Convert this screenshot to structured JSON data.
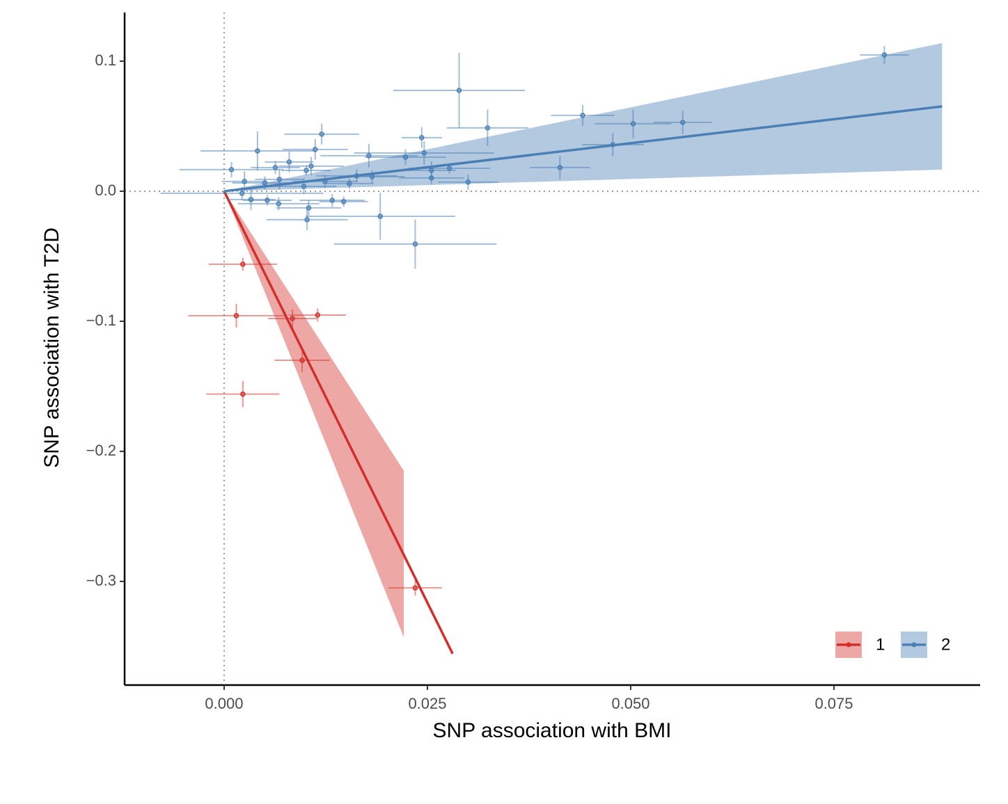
{
  "chart_data": {
    "type": "scatter",
    "x_label": "SNP association with BMI",
    "y_label": "SNP association with T2D",
    "xlim": [
      -0.01224,
      0.09298
    ],
    "ylim": [
      -0.3797,
      0.1374
    ],
    "xticks": [
      {
        "value": 0,
        "label": "0.000"
      },
      {
        "value": 0.025,
        "label": "0.025"
      },
      {
        "value": 0.05,
        "label": "0.050"
      },
      {
        "value": 0.075,
        "label": "0.075"
      }
    ],
    "yticks": [
      {
        "value": -0.3,
        "label": "−0.3"
      },
      {
        "value": -0.2,
        "label": "−0.2"
      },
      {
        "value": -0.1,
        "label": "−0.1"
      },
      {
        "value": 0,
        "label": "0.0"
      },
      0.1
    ],
    "hline": 0,
    "vline": 0,
    "legend_position": "bottom-right",
    "series": [
      {
        "name": "1",
        "color": "#d32f2a",
        "x": [
          0.0023,
          0.0015,
          0.0084,
          0.0115,
          0.0096,
          0.0023,
          0.0235
        ],
        "values": [
          -0.0561,
          -0.0957,
          -0.0979,
          -0.0952,
          -0.13,
          -0.156,
          -0.305
        ],
        "xerr": [
          0.0042,
          0.0059,
          0.003,
          0.0035,
          0.0034,
          0.0045,
          0.0033
        ],
        "yerr": [
          0.005,
          0.009,
          0.007,
          0.005,
          0.009,
          0.01,
          0.006
        ],
        "fit": {
          "x": [
            0,
            0.0281
          ],
          "y": [
            0,
            -0.3556
          ]
        },
        "band": {
          "x": [
            0,
            0.0221
          ],
          "lower": [
            0,
            -0.343
          ],
          "upper": [
            0,
            -0.215
          ]
        }
      },
      {
        "name": "2",
        "color": "#4a7fb5",
        "x": [
          0.0812,
          0.0289,
          0.0324,
          0.0441,
          0.0503,
          0.0564,
          0.0478,
          0.0413,
          0.03,
          0.0235,
          0.0192,
          0.012,
          0.0243,
          0.0246,
          0.0223,
          0.0178,
          0.0112,
          0.0041,
          0.0009,
          0.0025,
          0.0063,
          0.008,
          0.0107,
          0.0068,
          0.005,
          0.0098,
          0.0124,
          0.0163,
          0.0255,
          0.0277,
          0.0255,
          0.0033,
          0.0053,
          0.0067,
          0.0104,
          0.0133,
          0.0147,
          0.0102,
          0.0022,
          0.0101,
          0.0154,
          0.0182
        ],
        "values": [
          0.1048,
          0.0775,
          0.0487,
          0.0583,
          0.0519,
          0.0529,
          0.0358,
          0.0182,
          0.007,
          -0.0406,
          -0.0193,
          0.0439,
          0.0412,
          0.0294,
          0.0262,
          0.0273,
          0.0321,
          0.031,
          0.0166,
          0.0075,
          0.0182,
          0.0225,
          0.0193,
          0.0091,
          0.0064,
          0.0037,
          0.0075,
          0.0118,
          0.016,
          0.0176,
          0.0102,
          -0.0064,
          -0.007,
          -0.0096,
          -0.0128,
          -0.007,
          -0.008,
          -0.0219,
          -0.0016,
          0.016,
          0.0059,
          0.0112
        ],
        "xerr": [
          0.003,
          0.0081,
          0.005,
          0.0039,
          0.0047,
          0.0036,
          0.0038,
          0.0037,
          0.0037,
          0.01,
          0.0092,
          0.0046,
          0.0025,
          0.0086,
          0.005,
          0.006,
          0.004,
          0.007,
          0.0064,
          0.0028,
          0.003,
          0.003,
          0.004,
          0.003,
          0.004,
          0.004,
          0.004,
          0.005,
          0.003,
          0.005,
          0.004,
          0.003,
          0.003,
          0.005,
          0.004,
          0.004,
          0.003,
          0.005,
          0.01,
          0.003,
          0.003,
          0.004
        ],
        "yerr": [
          0.007,
          0.029,
          0.014,
          0.008,
          0.011,
          0.009,
          0.009,
          0.009,
          0.006,
          0.019,
          0.018,
          0.008,
          0.008,
          0.009,
          0.006,
          0.009,
          0.008,
          0.015,
          0.006,
          0.008,
          0.005,
          0.008,
          0.007,
          0.008,
          0.005,
          0.006,
          0.005,
          0.005,
          0.007,
          0.004,
          0.005,
          0.008,
          0.004,
          0.005,
          0.006,
          0.005,
          0.004,
          0.008,
          0.005,
          0.004,
          0.004,
          0.005
        ],
        "fit": {
          "x": [
            0,
            0.0883
          ],
          "y": [
            0,
            0.0652
          ]
        },
        "band": {
          "x": [
            0,
            0.0883
          ],
          "lower": [
            0,
            0.0166
          ],
          "upper": [
            0,
            0.1139
          ]
        }
      }
    ]
  }
}
